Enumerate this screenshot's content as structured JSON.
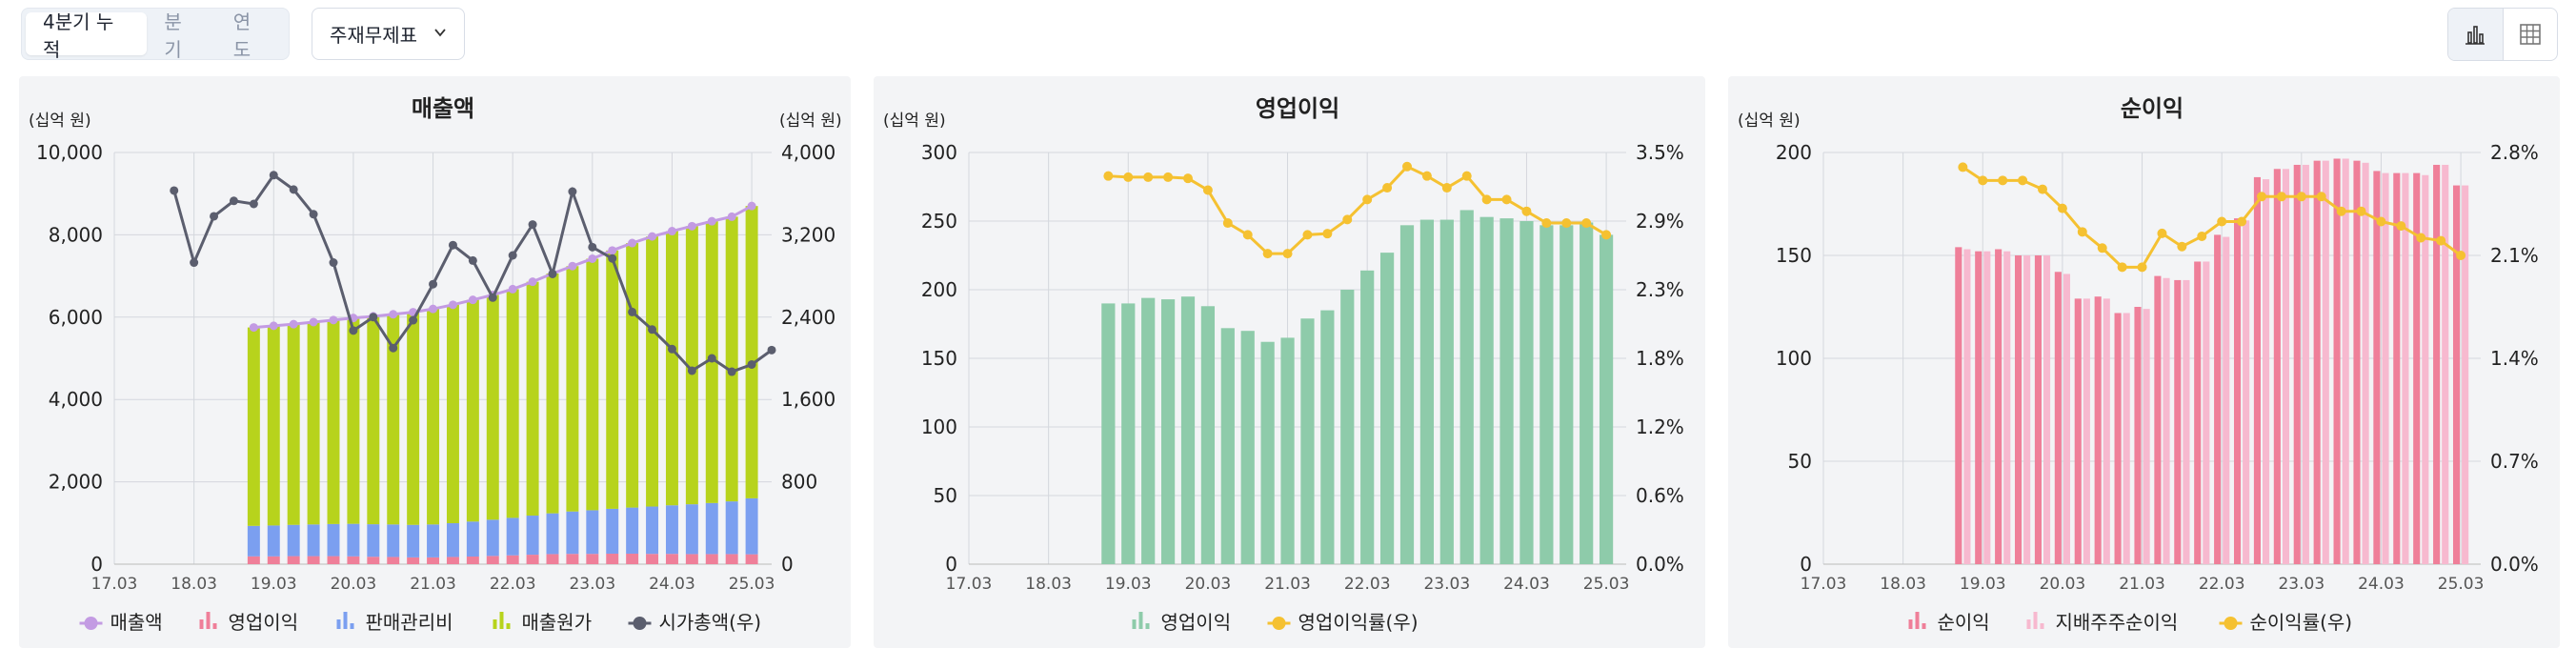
{
  "toolbar": {
    "period_tabs": [
      {
        "label": "4분기 누적",
        "active": true
      },
      {
        "label": "분기",
        "active": false
      },
      {
        "label": "연도",
        "active": false
      }
    ],
    "statement_select": {
      "value": "주재무제표"
    },
    "view_toggle": [
      {
        "icon": "bar-chart-icon",
        "active": true
      },
      {
        "icon": "table-grid-icon",
        "active": false
      }
    ]
  },
  "colors": {
    "revenue": "#c39be3",
    "op_profit": "#ef7f99",
    "sga": "#7b9ff0",
    "cogs": "#b7d31c",
    "market_cap": "#5b5e6e",
    "op_bar": "#8ecbaa",
    "margin": "#f5c131",
    "net_income": "#ef7f99",
    "controlling": "#f7b9cf",
    "panel_bg": "#f3f4f6",
    "grid": "#d4d7dd"
  },
  "chart_data": [
    {
      "type": "bar",
      "title": "매출액",
      "left_unit": "(십억 원)",
      "right_unit": "(십억 원)",
      "x_ticks": [
        "17.03",
        "18.03",
        "19.03",
        "20.03",
        "21.03",
        "22.03",
        "23.03",
        "24.03",
        "25.03"
      ],
      "x_start": "2017.03",
      "x_end": "2025.06",
      "ylim": [
        0,
        10000
      ],
      "y_ticks": [
        "0",
        "2,000",
        "4,000",
        "6,000",
        "8,000",
        "10,000"
      ],
      "y2lim": [
        0,
        4000
      ],
      "y2_ticks": [
        "0",
        "800",
        "1,600",
        "2,400",
        "3,200",
        "4,000"
      ],
      "stacked_categories": [
        "2018.12",
        "2019.03",
        "2019.06",
        "2019.09",
        "2019.12",
        "2020.03",
        "2020.06",
        "2020.09",
        "2020.12",
        "2021.03",
        "2021.06",
        "2021.09",
        "2021.12",
        "2022.03",
        "2022.06",
        "2022.09",
        "2022.12",
        "2023.03",
        "2023.06",
        "2023.09",
        "2023.12",
        "2024.03",
        "2024.06",
        "2024.09",
        "2024.12",
        "2025.03"
      ],
      "series": [
        {
          "name": "매출액",
          "kind": "line-marker",
          "values": [
            5750,
            5790,
            5830,
            5880,
            5930,
            5980,
            6020,
            6070,
            6120,
            6200,
            6300,
            6420,
            6540,
            6680,
            6860,
            7060,
            7240,
            7420,
            7620,
            7800,
            7960,
            8090,
            8210,
            8330,
            8440,
            8700
          ]
        },
        {
          "name": "영업이익",
          "kind": "stack",
          "values": [
            190,
            190,
            195,
            195,
            195,
            190,
            180,
            175,
            165,
            165,
            175,
            185,
            200,
            215,
            230,
            245,
            250,
            250,
            255,
            255,
            250,
            250,
            245,
            245,
            245,
            240
          ]
        },
        {
          "name": "판매관리비",
          "kind": "stack",
          "values": [
            740,
            750,
            760,
            770,
            780,
            790,
            790,
            790,
            790,
            800,
            820,
            850,
            880,
            910,
            950,
            990,
            1030,
            1060,
            1090,
            1120,
            1150,
            1180,
            1210,
            1240,
            1280,
            1360
          ]
        },
        {
          "name": "매출원가",
          "kind": "stack",
          "values": [
            4820,
            4850,
            4875,
            4915,
            4955,
            5000,
            5050,
            5105,
            5165,
            5235,
            5305,
            5385,
            5460,
            5555,
            5680,
            5825,
            5960,
            6110,
            6275,
            6425,
            6560,
            6660,
            6755,
            6845,
            6915,
            7100
          ]
        },
        {
          "name": "시가총액(우)",
          "kind": "line-right",
          "x": [
            "2017.12",
            "2018.03",
            "2018.06",
            "2018.09",
            "2018.12",
            "2019.03",
            "2019.06",
            "2019.09",
            "2019.12",
            "2020.03",
            "2020.06",
            "2020.09",
            "2020.12",
            "2021.03",
            "2021.06",
            "2021.09",
            "2021.12",
            "2022.03",
            "2022.06",
            "2022.09",
            "2022.12",
            "2023.03",
            "2023.06",
            "2023.09",
            "2023.12",
            "2024.03",
            "2024.06",
            "2024.09",
            "2024.12",
            "2025.03",
            "2025.06"
          ],
          "values": [
            3630,
            2930,
            3380,
            3530,
            3500,
            3780,
            3640,
            3400,
            2930,
            2270,
            2400,
            2100,
            2370,
            2720,
            3100,
            2950,
            2590,
            3000,
            3300,
            2820,
            3620,
            3080,
            2970,
            2450,
            2280,
            2090,
            1880,
            2000,
            1870,
            1940,
            2080
          ]
        }
      ],
      "legend": [
        "매출액",
        "영업이익",
        "판매관리비",
        "매출원가",
        "시가총액(우)"
      ]
    },
    {
      "type": "bar",
      "title": "영업이익",
      "left_unit": "(십억 원)",
      "x_ticks": [
        "17.03",
        "18.03",
        "19.03",
        "20.03",
        "21.03",
        "22.03",
        "23.03",
        "24.03",
        "25.03"
      ],
      "x_start": "2017.03",
      "x_end": "2025.06",
      "ylim": [
        0,
        300
      ],
      "y_ticks": [
        "0",
        "50",
        "100",
        "150",
        "200",
        "250",
        "300"
      ],
      "y2lim": [
        0,
        3.5
      ],
      "y2_ticks": [
        "0.0%",
        "0.6%",
        "1.2%",
        "1.8%",
        "2.3%",
        "2.9%",
        "3.5%"
      ],
      "categories": [
        "2018.12",
        "2019.03",
        "2019.06",
        "2019.09",
        "2019.12",
        "2020.03",
        "2020.06",
        "2020.09",
        "2020.12",
        "2021.03",
        "2021.06",
        "2021.09",
        "2021.12",
        "2022.03",
        "2022.06",
        "2022.09",
        "2022.12",
        "2023.03",
        "2023.06",
        "2023.09",
        "2023.12",
        "2024.03",
        "2024.06",
        "2024.09",
        "2024.12",
        "2025.03"
      ],
      "series": [
        {
          "name": "영업이익",
          "kind": "bar",
          "values": [
            190,
            190,
            194,
            193,
            195,
            188,
            172,
            170,
            162,
            165,
            179,
            185,
            200,
            214,
            227,
            247,
            251,
            251,
            258,
            253,
            252,
            250,
            247,
            247,
            249,
            240
          ]
        },
        {
          "name": "영업이익률(우)",
          "kind": "line-right",
          "values": [
            3.3,
            3.29,
            3.29,
            3.29,
            3.28,
            3.18,
            2.9,
            2.8,
            2.64,
            2.64,
            2.8,
            2.81,
            2.93,
            3.1,
            3.2,
            3.38,
            3.3,
            3.2,
            3.3,
            3.1,
            3.1,
            3.0,
            2.9,
            2.9,
            2.9,
            2.8
          ]
        }
      ],
      "legend": [
        "영업이익",
        "영업이익률(우)"
      ]
    },
    {
      "type": "bar",
      "title": "순이익",
      "left_unit": "(십억 원)",
      "x_ticks": [
        "17.03",
        "18.03",
        "19.03",
        "20.03",
        "21.03",
        "22.03",
        "23.03",
        "24.03",
        "25.03"
      ],
      "x_start": "2017.03",
      "x_end": "2025.06",
      "ylim": [
        0,
        200
      ],
      "y_ticks": [
        "0",
        "50",
        "100",
        "150",
        "200"
      ],
      "y2lim": [
        0,
        2.8
      ],
      "y2_ticks": [
        "0.0%",
        "0.7%",
        "1.4%",
        "2.1%",
        "2.8%"
      ],
      "categories": [
        "2018.12",
        "2019.03",
        "2019.06",
        "2019.09",
        "2019.12",
        "2020.03",
        "2020.06",
        "2020.09",
        "2020.12",
        "2021.03",
        "2021.06",
        "2021.09",
        "2021.12",
        "2022.03",
        "2022.06",
        "2022.09",
        "2022.12",
        "2023.03",
        "2023.06",
        "2023.09",
        "2023.12",
        "2024.03",
        "2024.06",
        "2024.09",
        "2024.12",
        "2025.03"
      ],
      "series": [
        {
          "name": "순이익",
          "kind": "bar",
          "values": [
            154,
            152,
            153,
            150,
            150,
            142,
            129,
            130,
            122,
            125,
            140,
            138,
            147,
            160,
            168,
            188,
            192,
            194,
            196,
            197,
            196,
            191,
            190,
            190,
            194,
            184
          ]
        },
        {
          "name": "지배주주순이익",
          "kind": "bar",
          "values": [
            153,
            152,
            152,
            150,
            150,
            141,
            129,
            129,
            122,
            124,
            139,
            138,
            147,
            159,
            167,
            187,
            192,
            194,
            196,
            197,
            195,
            190,
            190,
            189,
            194,
            184
          ]
        },
        {
          "name": "순이익률(우)",
          "kind": "line-right",
          "values": [
            2.7,
            2.61,
            2.61,
            2.61,
            2.55,
            2.42,
            2.26,
            2.15,
            2.02,
            2.02,
            2.25,
            2.16,
            2.23,
            2.33,
            2.33,
            2.5,
            2.5,
            2.5,
            2.5,
            2.4,
            2.4,
            2.33,
            2.3,
            2.22,
            2.2,
            2.1
          ]
        }
      ],
      "legend": [
        "순이익",
        "지배주주순이익",
        "순이익률(우)"
      ]
    }
  ]
}
